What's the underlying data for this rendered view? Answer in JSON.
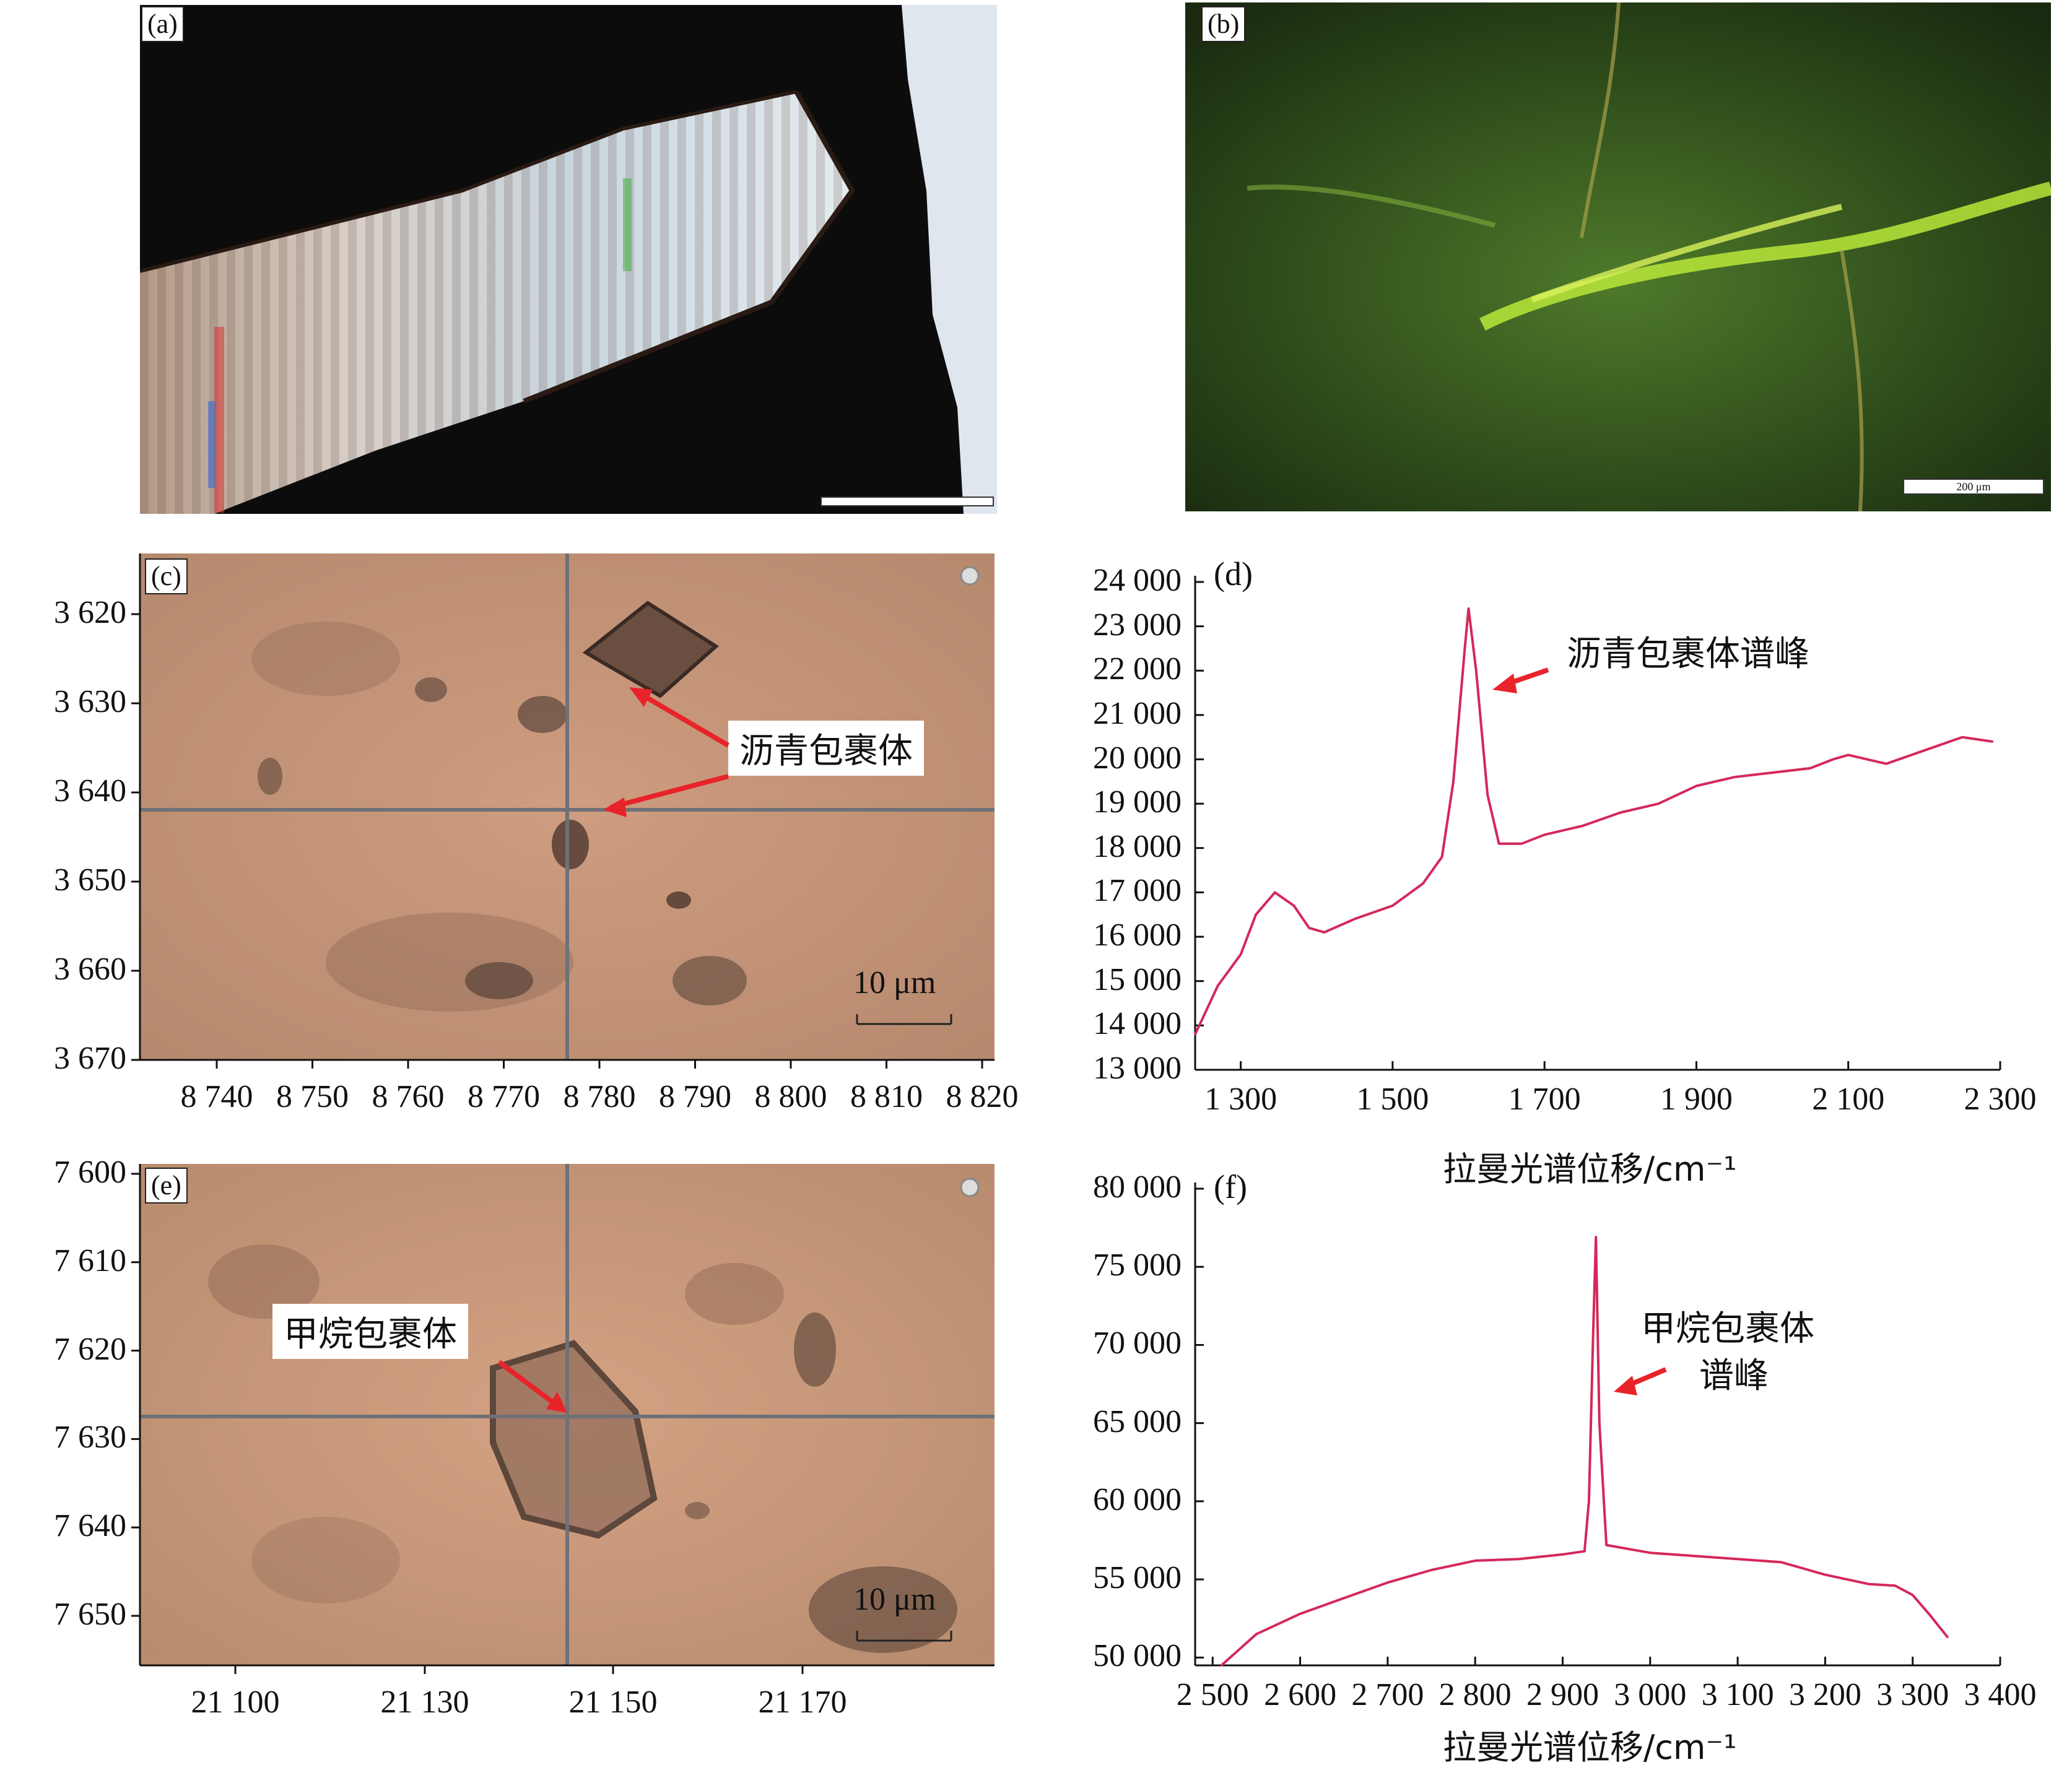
{
  "panels": {
    "a": {
      "label": "(a)"
    },
    "b": {
      "label": "(b)",
      "scale_text": "200 μm"
    },
    "c": {
      "label": "(c)",
      "callout": "沥青包裹体",
      "scale_text": "10 μm",
      "y_ticks": [
        "3 620",
        "3 630",
        "3 640",
        "3 650",
        "3 660",
        "3 670"
      ],
      "x_ticks": [
        "8 740",
        "8 750",
        "8 760",
        "8 770",
        "8 780",
        "8 790",
        "8 800",
        "8 810",
        "8 820"
      ]
    },
    "d": {
      "label": "(d)"
    },
    "e": {
      "label": "(e)",
      "callout": "甲烷包裹体",
      "scale_text": "10 μm",
      "y_ticks": [
        "7 600",
        "7 610",
        "7 620",
        "7 630",
        "7 640",
        "7 650"
      ],
      "x_ticks": [
        "21 100",
        "21 130",
        "21 150",
        "21 170"
      ]
    },
    "f": {
      "label": "(f)"
    }
  },
  "chart_data": [
    {
      "type": "line",
      "panel": "d",
      "xlabel": "拉曼光谱位移/cm⁻¹",
      "ylabel": "",
      "xlim": [
        1240,
        2300
      ],
      "ylim": [
        13000,
        24000
      ],
      "x_ticks": [
        "1 300",
        "1 500",
        "1 700",
        "1 900",
        "2 100",
        "2 300"
      ],
      "y_ticks": [
        "24 000",
        "23 000",
        "22 000",
        "21 000",
        "20 000",
        "19 000",
        "18 000",
        "17 000",
        "16 000",
        "15 000",
        "14 000",
        "13 000"
      ],
      "annotation": "沥青包裹体谱峰",
      "series": [
        {
          "x": [
            1240,
            1270,
            1300,
            1320,
            1345,
            1370,
            1390,
            1410,
            1450,
            1500,
            1540,
            1565,
            1580,
            1595,
            1600,
            1610,
            1625,
            1640,
            1670,
            1700,
            1750,
            1800,
            1850,
            1900,
            1950,
            2000,
            2050,
            2080,
            2100,
            2150,
            2200,
            2250,
            2290
          ],
          "y": [
            13800,
            14900,
            15600,
            16500,
            17000,
            16700,
            16200,
            16100,
            16400,
            16700,
            17200,
            17800,
            19500,
            22500,
            23400,
            22000,
            19200,
            18100,
            18100,
            18300,
            18500,
            18800,
            19000,
            19400,
            19600,
            19700,
            19800,
            20000,
            20100,
            19900,
            20200,
            20500,
            20400
          ]
        }
      ]
    },
    {
      "type": "line",
      "panel": "f",
      "xlabel": "拉曼光谱位移/cm⁻¹",
      "ylabel": "",
      "xlim": [
        2480,
        3400
      ],
      "ylim": [
        49500,
        80000
      ],
      "x_ticks": [
        "2 500",
        "2 600",
        "2 700",
        "2 800",
        "2 900",
        "3 000",
        "3 100",
        "3 200",
        "3 300",
        "3 400"
      ],
      "y_ticks": [
        "80 000",
        "75 000",
        "70 000",
        "65 000",
        "60 000",
        "55 000",
        "50 000"
      ],
      "annotation_line1": "甲烷包裹体",
      "annotation_line2": "谱峰",
      "series": [
        {
          "x": [
            2510,
            2550,
            2600,
            2650,
            2700,
            2750,
            2800,
            2850,
            2900,
            2925,
            2930,
            2935,
            2938,
            2942,
            2950,
            2970,
            3000,
            3050,
            3100,
            3150,
            3200,
            3250,
            3280,
            3300,
            3320,
            3340
          ],
          "y": [
            49500,
            51500,
            52800,
            53800,
            54800,
            55600,
            56200,
            56300,
            56600,
            56800,
            60000,
            71000,
            76900,
            65000,
            57200,
            57000,
            56700,
            56500,
            56300,
            56100,
            55300,
            54700,
            54600,
            54000,
            52700,
            51300
          ]
        }
      ]
    }
  ]
}
